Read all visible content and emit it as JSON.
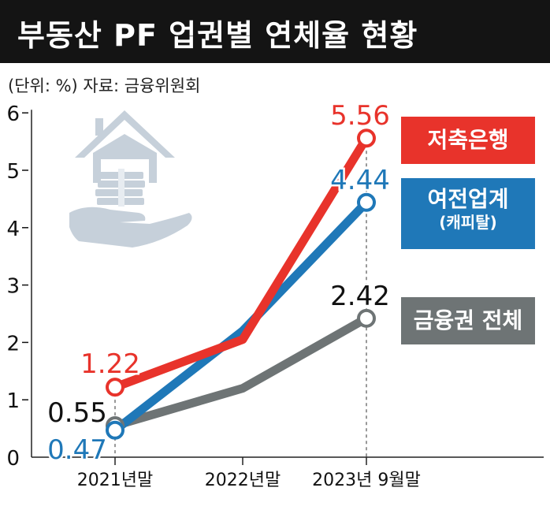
{
  "title": "부동산 PF 업권별 연체율 현황",
  "subtitle": "(단위: %) 자료: 금융위원회",
  "colors": {
    "savings_bank": "#e8332b",
    "credit_finance": "#1f78b8",
    "total": "#6e7475",
    "title_bg": "#141414",
    "icon": "#c6d0da"
  },
  "icons": [
    "house-icon",
    "money-stack-icon",
    "hand-icon"
  ],
  "chart_data": {
    "type": "line",
    "x": [
      "2021년말",
      "2022년말",
      "2023년 9월말"
    ],
    "ylim": [
      0,
      6
    ],
    "yticks": [
      0,
      1,
      2,
      3,
      4,
      5,
      6
    ],
    "grid": false,
    "series": [
      {
        "key": "savings_bank",
        "name": "저축은행",
        "values": [
          1.22,
          2.05,
          5.56
        ],
        "labels": [
          "1.22",
          "",
          "5.56"
        ]
      },
      {
        "key": "credit_finance",
        "name": "여전업계",
        "name_sub": "(캐피탈)",
        "values": [
          0.47,
          2.2,
          4.44
        ],
        "labels": [
          "0.47",
          "",
          "4.44"
        ]
      },
      {
        "key": "total",
        "name": "금융권 전체",
        "values": [
          0.55,
          1.2,
          2.42
        ],
        "labels": [
          "0.55",
          "",
          "2.42"
        ]
      }
    ]
  },
  "legend": {
    "savings_bank": "저축은행",
    "credit_finance": "여전업계",
    "credit_finance_sub": "(캐피탈)",
    "total": "금융권 전체"
  }
}
